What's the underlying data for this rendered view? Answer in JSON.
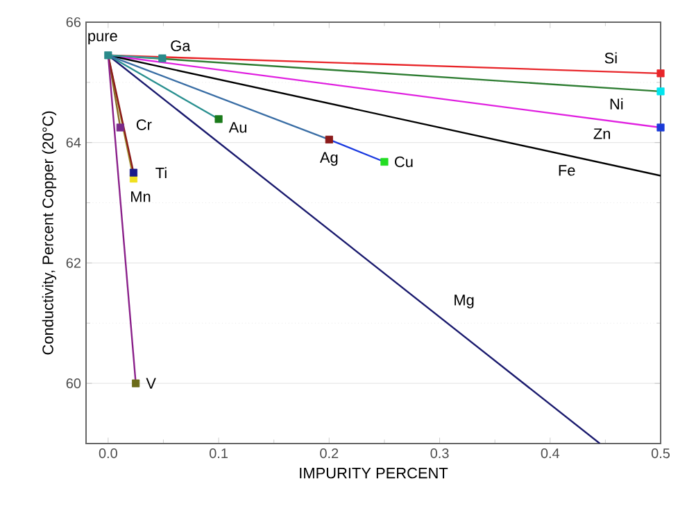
{
  "chart_data": {
    "type": "line",
    "xlabel": "IMPURITY PERCENT",
    "ylabel": "Conductivity, Percent Copper (20°C)",
    "xlim": [
      -0.02,
      0.5
    ],
    "ylim": [
      59,
      66
    ],
    "xticks": [
      {
        "value": 0,
        "label": "0.0"
      },
      {
        "value": 0.1,
        "label": "0.1"
      },
      {
        "value": 0.2,
        "label": "0.2"
      },
      {
        "value": 0.3,
        "label": "0.3"
      },
      {
        "value": 0.4,
        "label": "0.4"
      },
      {
        "value": 0.5,
        "label": "0.5"
      }
    ],
    "yticks": [
      60,
      62,
      64,
      66
    ],
    "grid": "y",
    "marker": "square",
    "line_style": "solid",
    "series": [
      {
        "name": "Si",
        "x": [
          0,
          0.5
        ],
        "values": [
          65.45,
          65.15
        ],
        "color": "#e8262a",
        "colors": [
          null,
          "#e8262a"
        ]
      },
      {
        "name": "Ni",
        "x": [
          0,
          0.5
        ],
        "values": [
          65.45,
          64.85
        ],
        "color": "#2e7d32",
        "colors": [
          null,
          "#00e5ee"
        ]
      },
      {
        "name": "Zn",
        "x": [
          0,
          0.5
        ],
        "values": [
          65.45,
          64.25
        ],
        "color": "#e020e0",
        "colors": [
          null,
          "#1a3ad8"
        ]
      },
      {
        "name": "Fe",
        "x": [
          0,
          0.5
        ],
        "values": [
          65.45,
          63.45
        ],
        "color": "#000000",
        "marker": "none"
      },
      {
        "name": "Mg",
        "x": [
          0,
          0.445
        ],
        "values": [
          65.45,
          59.0
        ],
        "color": "#1a1a6e",
        "marker": "none"
      },
      {
        "name": "Ga",
        "x": [
          0,
          0.049
        ],
        "values": [
          65.45,
          65.4
        ],
        "color": "#3a9a9a",
        "colors": [
          null,
          "#2a8a8a"
        ]
      },
      {
        "name": "Au",
        "x": [
          0,
          0.1
        ],
        "values": [
          65.45,
          64.39
        ],
        "color": "#2a9090",
        "colors": [
          null,
          "#1a7a1a"
        ]
      },
      {
        "name": "Ag",
        "x": [
          0,
          0.2
        ],
        "values": [
          65.45,
          64.05
        ],
        "color": "#3a6ea5",
        "colors": [
          null,
          "#8b1a1a"
        ]
      },
      {
        "name": "Cu",
        "x": [
          0.2,
          0.25
        ],
        "values": [
          64.05,
          63.68
        ],
        "color": "#1a3ae0",
        "colors": [
          null,
          "#22dd22"
        ]
      },
      {
        "name": "Mn",
        "x": [
          0,
          0.023
        ],
        "values": [
          65.45,
          63.4
        ],
        "color": "#a09030",
        "colors": [
          null,
          "#f0e020"
        ]
      },
      {
        "name": "Cr",
        "x": [
          0,
          0.011
        ],
        "values": [
          65.45,
          64.25
        ],
        "color": "#8a6a2a",
        "colors": [
          null,
          "#7a2a8a"
        ]
      },
      {
        "name": "Ti",
        "x": [
          0,
          0.023
        ],
        "values": [
          65.45,
          63.5
        ],
        "color": "#8b1a1a",
        "colors": [
          null,
          "#1a1a8b"
        ]
      },
      {
        "name": "V",
        "x": [
          0,
          0.025
        ],
        "values": [
          65.45,
          60.0
        ],
        "color": "#8a208a",
        "colors": [
          null,
          "#6b6b1a"
        ]
      },
      {
        "name": "pure",
        "type": "scatter",
        "x": [
          0
        ],
        "values": [
          65.45
        ],
        "color": "#2a8a8a"
      }
    ]
  }
}
